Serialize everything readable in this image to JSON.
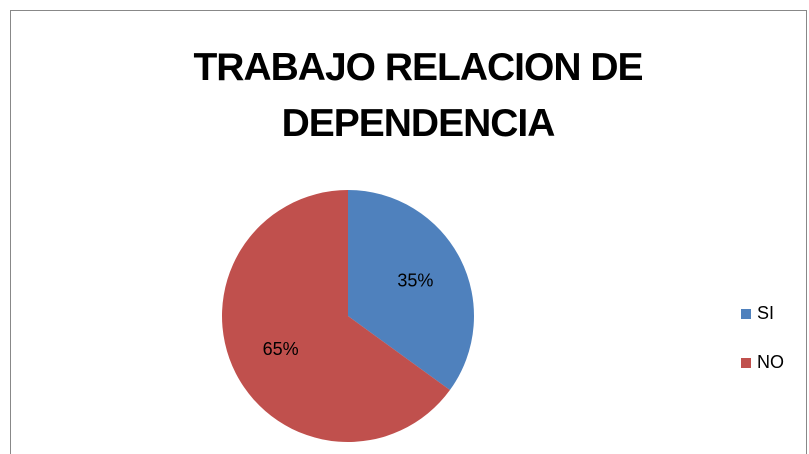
{
  "chart_data": {
    "type": "pie",
    "title": "TRABAJO RELACION DE DEPENDENCIA",
    "categories": [
      "SI",
      "NO"
    ],
    "values": [
      35,
      65
    ],
    "value_labels": [
      "35%",
      "65%"
    ],
    "colors": [
      "#4f81bd",
      "#c0504d"
    ],
    "legend": "right"
  }
}
